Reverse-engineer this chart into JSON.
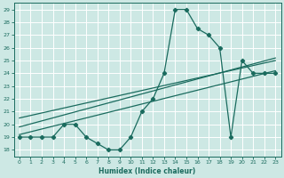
{
  "xlabel": "Humidex (Indice chaleur)",
  "bg_color": "#cde8e4",
  "grid_color": "#b0d8d2",
  "line_color": "#1a6b5e",
  "xlim": [
    -0.5,
    23.5
  ],
  "ylim": [
    17.5,
    29.5
  ],
  "xticks": [
    0,
    1,
    2,
    3,
    4,
    5,
    6,
    7,
    8,
    9,
    10,
    11,
    12,
    13,
    14,
    15,
    16,
    17,
    18,
    19,
    20,
    21,
    22,
    23
  ],
  "yticks": [
    18,
    19,
    20,
    21,
    22,
    23,
    24,
    25,
    26,
    27,
    28,
    29
  ],
  "main_x": [
    0,
    1,
    2,
    3,
    4,
    5,
    6,
    7,
    8,
    9,
    10,
    11,
    12,
    13,
    14,
    15,
    16,
    17,
    18,
    19,
    20,
    21,
    22,
    23
  ],
  "main_y": [
    19,
    19,
    19,
    19,
    20,
    20,
    19,
    18.5,
    18,
    18,
    19,
    21,
    22,
    24,
    29,
    29,
    27.5,
    27,
    26,
    19,
    25,
    24,
    24,
    24
  ],
  "trend1_x": [
    0,
    23
  ],
  "trend1_y": [
    19.8,
    25.2
  ],
  "trend2_x": [
    0,
    23
  ],
  "trend2_y": [
    20.5,
    25.0
  ],
  "trend3_x": [
    0,
    23
  ],
  "trend3_y": [
    19.2,
    24.2
  ]
}
